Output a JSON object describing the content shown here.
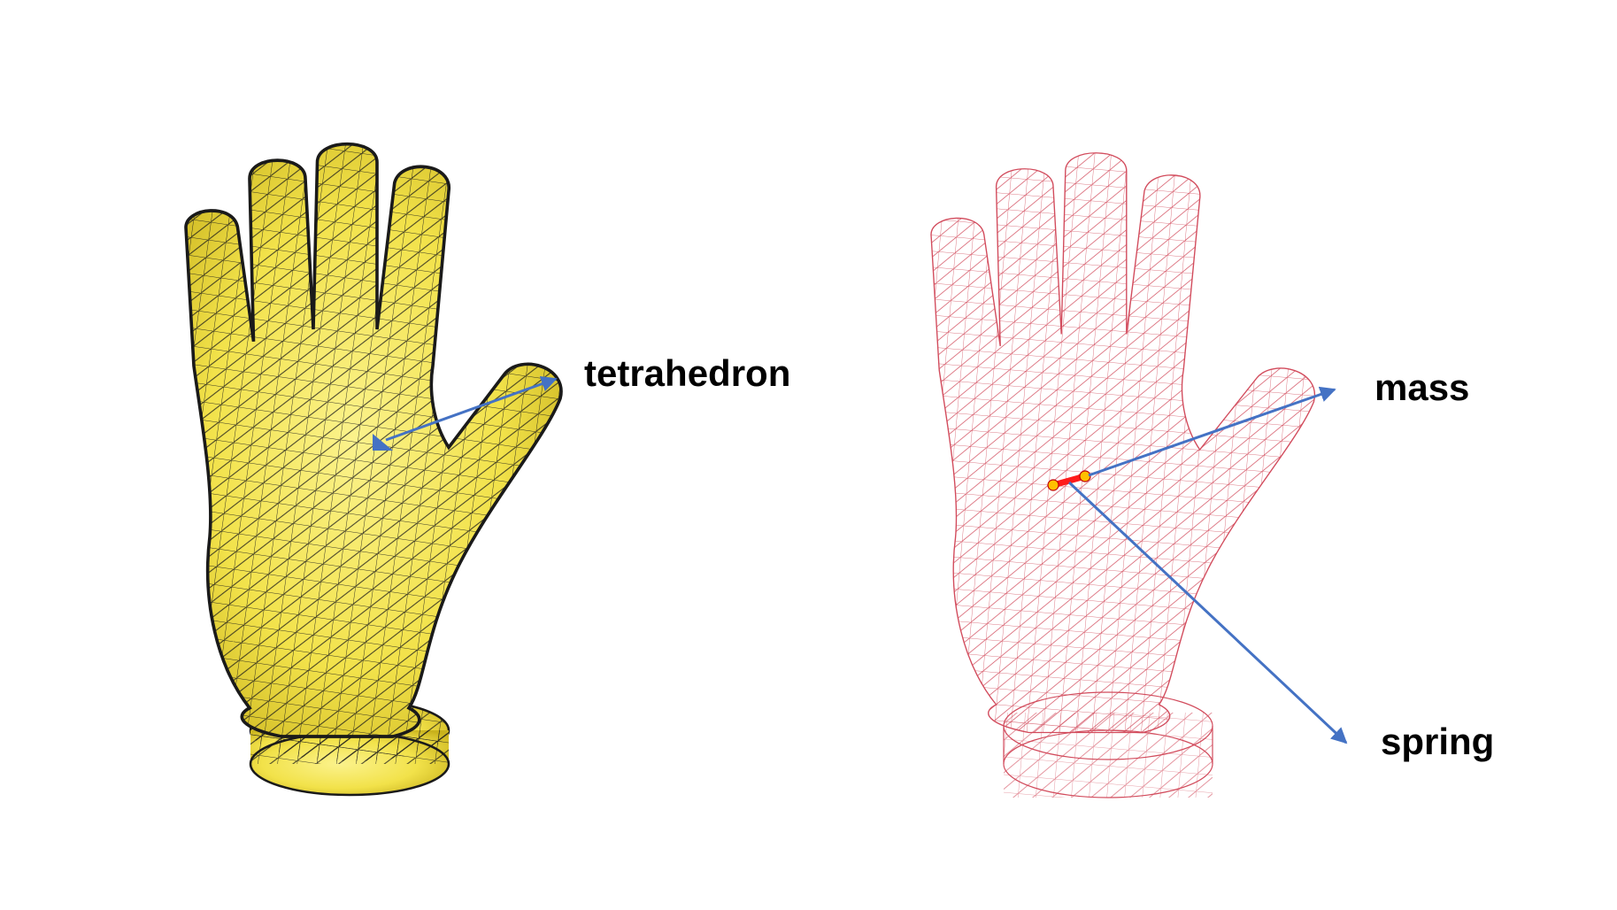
{
  "labels": {
    "tetrahedron": "tetrahedron",
    "mass": "mass",
    "spring": "spring"
  },
  "colors": {
    "solid_fill": "#F2E24A",
    "solid_fill_light": "#FBF28C",
    "solid_fill_dark": "#C9B21C",
    "solid_edge": "#1a1a1a",
    "wire": "#D24B5C",
    "arrow": "#4472C4",
    "spring": "#FF1A1A",
    "mass_node": "#FFC000"
  },
  "icons": {
    "solid_model": "solid-tetrahedral-hand-mesh",
    "wire_model": "wireframe-mass-spring-hand-mesh"
  }
}
